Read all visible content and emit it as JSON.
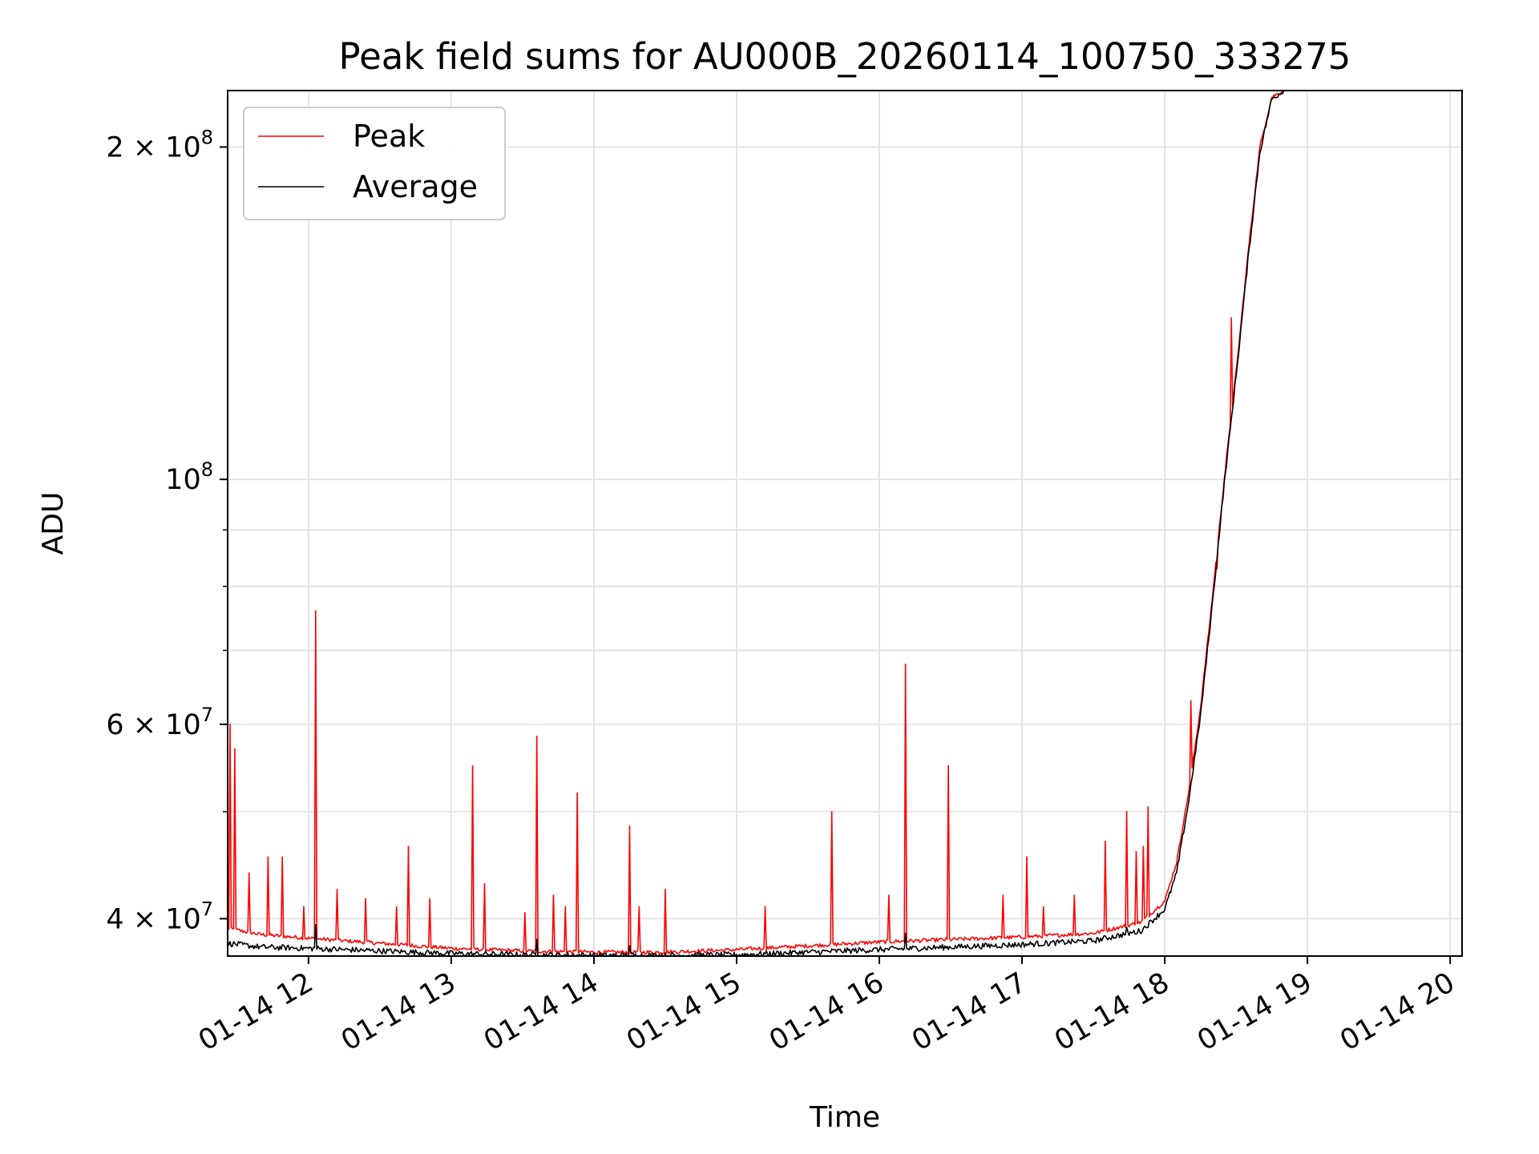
{
  "chart_data": {
    "type": "line",
    "title": "Peak field sums for AU000B_20260114_100750_333275",
    "xlabel": "Time",
    "ylabel": "ADU",
    "y_scale": "log",
    "grid": true,
    "legend_position": "top-left",
    "xlim": [
      "2026-01-14 11:26",
      "2026-01-14 20:05"
    ],
    "ylim": [
      37000000,
      225000000
    ],
    "x_ticks": [
      {
        "value": "2026-01-14 12:00",
        "label": "01-14 12"
      },
      {
        "value": "2026-01-14 13:00",
        "label": "01-14 13"
      },
      {
        "value": "2026-01-14 14:00",
        "label": "01-14 14"
      },
      {
        "value": "2026-01-14 15:00",
        "label": "01-14 15"
      },
      {
        "value": "2026-01-14 16:00",
        "label": "01-14 16"
      },
      {
        "value": "2026-01-14 17:00",
        "label": "01-14 17"
      },
      {
        "value": "2026-01-14 18:00",
        "label": "01-14 18"
      },
      {
        "value": "2026-01-14 19:00",
        "label": "01-14 19"
      },
      {
        "value": "2026-01-14 20:00",
        "label": "01-14 20"
      }
    ],
    "y_ticks": [
      {
        "value": 40000000,
        "base": "4 × 10",
        "exp": "7"
      },
      {
        "value": 60000000,
        "base": "6 × 10",
        "exp": "7"
      },
      {
        "value": 100000000,
        "base": "10",
        "exp": "8"
      },
      {
        "value": 200000000,
        "base": "2 × 10",
        "exp": "8"
      }
    ],
    "y_minor_ticks": [
      50000000,
      70000000,
      80000000,
      90000000
    ],
    "series": [
      {
        "name": "Peak",
        "color": "#ff0000",
        "baseline": [
          [
            "2026-01-14 11:26",
            39200000
          ],
          [
            "2026-01-14 11:40",
            38700000
          ],
          [
            "2026-01-14 12:00",
            38400000
          ],
          [
            "2026-01-14 12:30",
            38000000
          ],
          [
            "2026-01-14 13:00",
            37600000
          ],
          [
            "2026-01-14 13:30",
            37400000
          ],
          [
            "2026-01-14 14:00",
            37300000
          ],
          [
            "2026-01-14 14:30",
            37300000
          ],
          [
            "2026-01-14 15:00",
            37500000
          ],
          [
            "2026-01-14 15:30",
            37800000
          ],
          [
            "2026-01-14 16:00",
            38100000
          ],
          [
            "2026-01-14 16:30",
            38300000
          ],
          [
            "2026-01-14 17:00",
            38500000
          ],
          [
            "2026-01-14 17:30",
            38800000
          ],
          [
            "2026-01-14 17:50",
            39700000
          ],
          [
            "2026-01-14 18:00",
            41500000
          ],
          [
            "2026-01-14 18:05",
            45000000
          ],
          [
            "2026-01-14 18:10",
            52000000
          ],
          [
            "2026-01-14 18:15",
            62000000
          ],
          [
            "2026-01-14 18:20",
            78000000
          ],
          [
            "2026-01-14 18:25",
            100000000
          ],
          [
            "2026-01-14 18:30",
            125000000
          ],
          [
            "2026-01-14 18:35",
            160000000
          ],
          [
            "2026-01-14 18:40",
            200000000
          ],
          [
            "2026-01-14 18:45",
            222000000
          ],
          [
            "2026-01-14 18:50",
            225000000
          ]
        ],
        "spikes": [
          [
            "2026-01-14 11:27",
            60000000
          ],
          [
            "2026-01-14 11:29",
            57000000
          ],
          [
            "2026-01-14 11:35",
            44000000
          ],
          [
            "2026-01-14 11:43",
            45500000
          ],
          [
            "2026-01-14 11:49",
            45500000
          ],
          [
            "2026-01-14 11:58",
            41000000
          ],
          [
            "2026-01-14 12:03",
            76000000
          ],
          [
            "2026-01-14 12:12",
            42500000
          ],
          [
            "2026-01-14 12:24",
            41700000
          ],
          [
            "2026-01-14 12:37",
            41000000
          ],
          [
            "2026-01-14 12:42",
            46500000
          ],
          [
            "2026-01-14 12:51",
            41700000
          ],
          [
            "2026-01-14 13:09",
            55000000
          ],
          [
            "2026-01-14 13:14",
            43000000
          ],
          [
            "2026-01-14 13:31",
            40500000
          ],
          [
            "2026-01-14 13:36",
            58500000
          ],
          [
            "2026-01-14 13:43",
            42000000
          ],
          [
            "2026-01-14 13:48",
            41000000
          ],
          [
            "2026-01-14 13:53",
            52000000
          ],
          [
            "2026-01-14 14:15",
            48500000
          ],
          [
            "2026-01-14 14:19",
            41000000
          ],
          [
            "2026-01-14 14:30",
            42500000
          ],
          [
            "2026-01-14 15:12",
            41000000
          ],
          [
            "2026-01-14 15:40",
            50000000
          ],
          [
            "2026-01-14 16:04",
            42000000
          ],
          [
            "2026-01-14 16:11",
            68000000
          ],
          [
            "2026-01-14 16:29",
            55000000
          ],
          [
            "2026-01-14 16:52",
            42000000
          ],
          [
            "2026-01-14 17:02",
            45500000
          ],
          [
            "2026-01-14 17:09",
            41000000
          ],
          [
            "2026-01-14 17:22",
            42000000
          ],
          [
            "2026-01-14 17:35",
            47000000
          ],
          [
            "2026-01-14 17:44",
            50000000
          ],
          [
            "2026-01-14 17:48",
            46000000
          ],
          [
            "2026-01-14 17:51",
            46500000
          ],
          [
            "2026-01-14 17:53",
            50500000
          ],
          [
            "2026-01-14 18:11",
            63000000
          ],
          [
            "2026-01-14 18:22",
            83000000
          ],
          [
            "2026-01-14 18:28",
            140000000
          ]
        ]
      },
      {
        "name": "Average",
        "color": "#000000",
        "baseline": [
          [
            "2026-01-14 11:26",
            38000000
          ],
          [
            "2026-01-14 11:40",
            37700000
          ],
          [
            "2026-01-14 12:00",
            37600000
          ],
          [
            "2026-01-14 12:30",
            37400000
          ],
          [
            "2026-01-14 13:00",
            37200000
          ],
          [
            "2026-01-14 13:30",
            37100000
          ],
          [
            "2026-01-14 14:00",
            37050000
          ],
          [
            "2026-01-14 14:30",
            37050000
          ],
          [
            "2026-01-14 15:00",
            37100000
          ],
          [
            "2026-01-14 15:30",
            37300000
          ],
          [
            "2026-01-14 16:00",
            37500000
          ],
          [
            "2026-01-14 16:30",
            37700000
          ],
          [
            "2026-01-14 17:00",
            37900000
          ],
          [
            "2026-01-14 17:30",
            38200000
          ],
          [
            "2026-01-14 17:50",
            39000000
          ],
          [
            "2026-01-14 18:00",
            40800000
          ],
          [
            "2026-01-14 18:05",
            44000000
          ],
          [
            "2026-01-14 18:10",
            51000000
          ],
          [
            "2026-01-14 18:15",
            61000000
          ],
          [
            "2026-01-14 18:20",
            77000000
          ],
          [
            "2026-01-14 18:25",
            99000000
          ],
          [
            "2026-01-14 18:30",
            124000000
          ],
          [
            "2026-01-14 18:35",
            158000000
          ],
          [
            "2026-01-14 18:40",
            198000000
          ],
          [
            "2026-01-14 18:45",
            221000000
          ],
          [
            "2026-01-14 18:50",
            225000000
          ]
        ],
        "spikes": [
          [
            "2026-01-14 12:03",
            39500000
          ],
          [
            "2026-01-14 13:36",
            38300000
          ],
          [
            "2026-01-14 14:15",
            37800000
          ],
          [
            "2026-01-14 16:11",
            38800000
          ],
          [
            "2026-01-14 17:44",
            39300000
          ]
        ]
      }
    ]
  }
}
